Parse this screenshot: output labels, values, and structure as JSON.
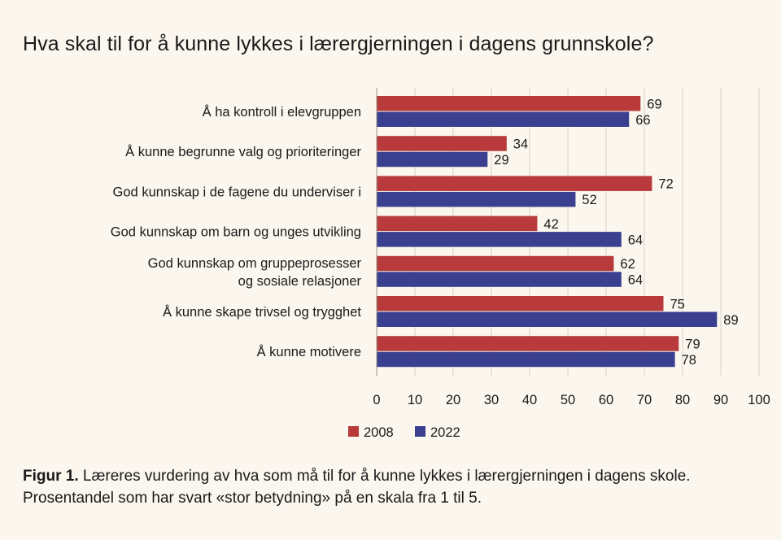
{
  "chart_data": {
    "type": "bar",
    "orientation": "horizontal",
    "title": "Hva skal til for å kunne lykkes i lærergjerningen i dagens grunnskole?",
    "categories": [
      [
        "Å ha kontroll i elevgruppen"
      ],
      [
        "Å kunne begrunne valg og prioriteringer"
      ],
      [
        "God kunnskap i de fagene du underviser i"
      ],
      [
        "God kunnskap om barn og unges utvikling"
      ],
      [
        "God kunnskap om gruppeprosesser",
        "og sosiale relasjoner"
      ],
      [
        "Å kunne skape trivsel og trygghet"
      ],
      [
        "Å kunne motivere"
      ]
    ],
    "series": [
      {
        "name": "2008",
        "color": "#b83a3a",
        "values": [
          69,
          34,
          72,
          42,
          62,
          75,
          79
        ]
      },
      {
        "name": "2022",
        "color": "#3a3f8f",
        "values": [
          66,
          29,
          52,
          64,
          64,
          89,
          78
        ]
      }
    ],
    "xlim": [
      0,
      100
    ],
    "xticks": [
      0,
      10,
      20,
      30,
      40,
      50,
      60,
      70,
      80,
      90,
      100
    ],
    "grid": true,
    "legend": "bottom"
  },
  "caption": {
    "label": "Figur 1.",
    "text": " Læreres vurdering av hva som må til for å kunne lykkes i lærergjerningen i dagens skole. Prosentandel som har svart «stor betydning» på en skala fra 1 til 5."
  }
}
